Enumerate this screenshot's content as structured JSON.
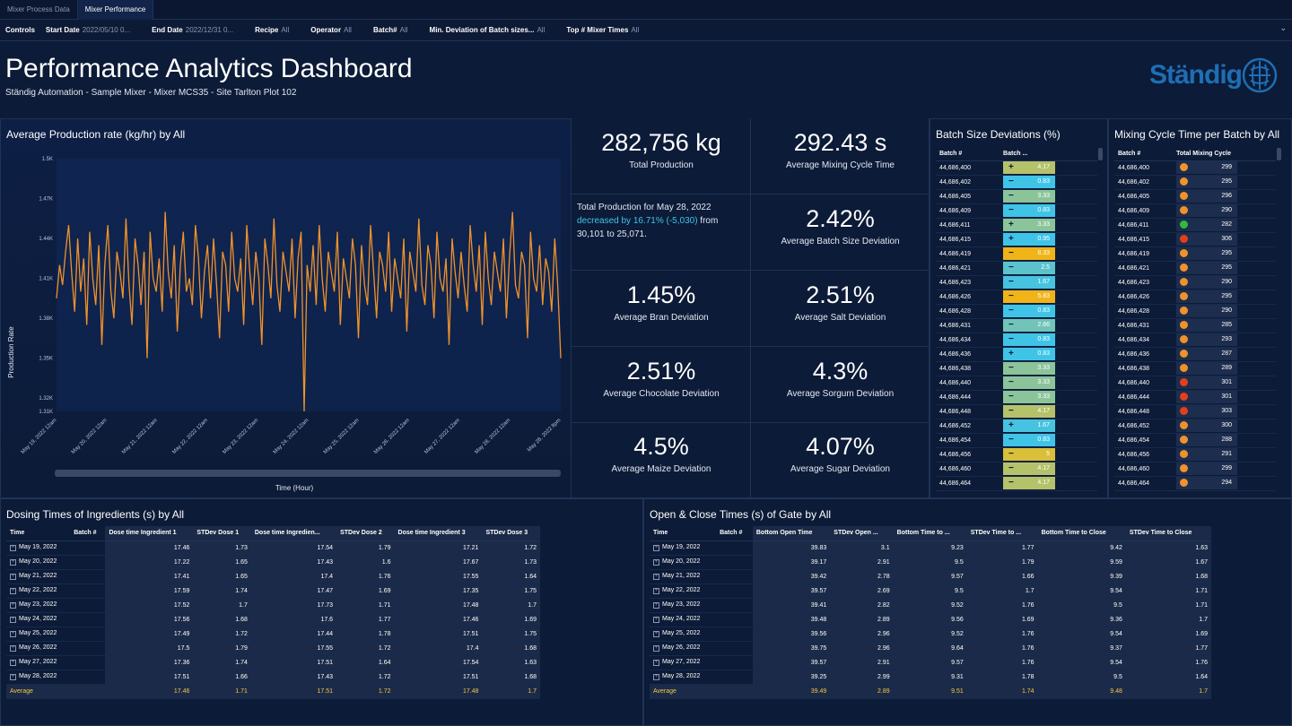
{
  "tabs": [
    "Mixer Process Data",
    "Mixer Performance"
  ],
  "controls": {
    "label": "Controls",
    "items": [
      {
        "name": "Start Date",
        "value": "2022/05/10 0..."
      },
      {
        "name": "End Date",
        "value": "2022/12/31 0..."
      },
      {
        "name": "Recipe",
        "value": "All"
      },
      {
        "name": "Operator",
        "value": "All"
      },
      {
        "name": "Batch#",
        "value": "All"
      },
      {
        "name": "Min. Deviation of Batch sizes...",
        "value": "All"
      },
      {
        "name": "Top # Mixer Times",
        "value": "All"
      }
    ]
  },
  "header": {
    "title": "Performance Analytics Dashboard",
    "subtitle": "Ständig Automation - Sample Mixer - Mixer MCS35 - Site Tarlton Plot 102",
    "logo_text": "Ständig"
  },
  "colors": {
    "accent": "#f0922b",
    "teal": "#3fc4e8",
    "yellow": "#f5c842",
    "good": "#2dbd3a",
    "bad": "#e2401c",
    "warn": "#f0922b"
  },
  "production_chart": {
    "title": "Average Production rate (kg/hr) by All",
    "xlabel": "Time (Hour)",
    "ylabel": "Production Rate",
    "chart_data": {
      "type": "line",
      "ylim": [
        1310,
        1500
      ],
      "yticks": [
        "1.5K",
        "1.47K",
        "1.44K",
        "1.41K",
        "1.38K",
        "1.35K",
        "1.32K",
        "1.31K"
      ],
      "ytick_values": [
        1500,
        1470,
        1440,
        1410,
        1380,
        1350,
        1320,
        1310
      ],
      "xticks": [
        "May 19, 2022 12am",
        "May 20, 2022 12am",
        "May 21, 2022 12am",
        "May 22, 2022 12am",
        "May 23, 2022 12am",
        "May 24, 2022 12am",
        "May 25, 2022 12am",
        "May 26, 2022 12am",
        "May 27, 2022 12am",
        "May 28, 2022 12am",
        "May 28, 2022 8pm"
      ],
      "values": [
        1395,
        1420,
        1405,
        1430,
        1450,
        1415,
        1385,
        1440,
        1400,
        1425,
        1375,
        1445,
        1410,
        1390,
        1435,
        1360,
        1420,
        1450,
        1400,
        1380,
        1430,
        1415,
        1395,
        1455,
        1405,
        1375,
        1440,
        1420,
        1390,
        1430,
        1350,
        1445,
        1410,
        1400,
        1425,
        1385,
        1460,
        1415,
        1395,
        1435,
        1370,
        1420,
        1445,
        1400,
        1410,
        1390,
        1450,
        1425,
        1380,
        1415,
        1435,
        1395,
        1440,
        1405,
        1365,
        1430,
        1420,
        1385,
        1445,
        1410,
        1400,
        1425,
        1375,
        1450,
        1415,
        1390,
        1430,
        1410,
        1360,
        1440,
        1420,
        1395,
        1455,
        1405,
        1385,
        1430,
        1415,
        1400,
        1440,
        1380,
        1425,
        1445,
        1310,
        1420,
        1400,
        1435,
        1390,
        1450,
        1410,
        1385,
        1430,
        1415,
        1400,
        1445,
        1375,
        1425,
        1410,
        1395,
        1440,
        1420,
        1365,
        1435,
        1405,
        1390,
        1450,
        1415,
        1380,
        1430,
        1420,
        1400,
        1445,
        1385,
        1425,
        1410,
        1395,
        1440,
        1370,
        1430,
        1415,
        1400,
        1455,
        1405,
        1390,
        1435,
        1420,
        1380,
        1445,
        1410,
        1400,
        1425,
        1360,
        1440,
        1415,
        1395,
        1430,
        1405,
        1385,
        1450,
        1420,
        1400,
        1435,
        1375,
        1445,
        1410,
        1390,
        1430,
        1415,
        1400,
        1440,
        1380,
        1425,
        1460,
        1405,
        1395,
        1430,
        1420,
        1365,
        1445,
        1410,
        1400,
        1435,
        1390,
        1425,
        1415,
        1385,
        1440,
        1405,
        1350
      ]
    }
  },
  "kpis": [
    {
      "value": "282,756 kg",
      "label": "Total Production"
    },
    {
      "value": "292.43 s",
      "label": "Average Mixing Cycle Time"
    },
    {
      "value": "2.42%",
      "label": "Average Batch Size Deviation"
    },
    {
      "value": "1.45%",
      "label": "Average Bran Deviation"
    },
    {
      "value": "2.51%",
      "label": "Average Salt Deviation"
    },
    {
      "value": "2.51%",
      "label": "Average Chocolate Deviation"
    },
    {
      "value": "4.3%",
      "label": "Average Sorgum Deviation"
    },
    {
      "value": "4.5%",
      "label": "Average Maize Deviation"
    },
    {
      "value": "4.07%",
      "label": "Average Sugar Deviation"
    }
  ],
  "narrative": {
    "line1": "Total Production for May 28, 2022",
    "highlight": "decreased by 16.71% (-5,030)",
    "line2": " from",
    "line3": "30,101 to 25,071."
  },
  "batch_deviation": {
    "title": "Batch Size Deviations (%)",
    "headers": [
      "Batch #",
      "Batch ..."
    ],
    "rows": [
      {
        "batch": "44,686,400",
        "sign": "+",
        "value": "4.17",
        "color": "#b5c26a"
      },
      {
        "batch": "44,686,402",
        "sign": "−",
        "value": "0.83",
        "color": "#3fc4e8"
      },
      {
        "batch": "44,686,405",
        "sign": "−",
        "value": "3.33",
        "color": "#8cc49a"
      },
      {
        "batch": "44,686,409",
        "sign": "−",
        "value": "0.83",
        "color": "#3fc4e8"
      },
      {
        "batch": "44,686,411",
        "sign": "+",
        "value": "3.33",
        "color": "#8cc49a"
      },
      {
        "batch": "44,686,415",
        "sign": "+",
        "value": "0.95",
        "color": "#3fc4e8"
      },
      {
        "batch": "44,686,419",
        "sign": "−",
        "value": "8.33",
        "color": "#f0b418"
      },
      {
        "batch": "44,686,421",
        "sign": "−",
        "value": "2.5",
        "color": "#5cc3cc"
      },
      {
        "batch": "44,686,423",
        "sign": "−",
        "value": "1.67",
        "color": "#46c3df"
      },
      {
        "batch": "44,686,426",
        "sign": "−",
        "value": "5.83",
        "color": "#f0b418"
      },
      {
        "batch": "44,686,428",
        "sign": "−",
        "value": "0.83",
        "color": "#3fc4e8"
      },
      {
        "batch": "44,686,431",
        "sign": "−",
        "value": "2.66",
        "color": "#72c4b8"
      },
      {
        "batch": "44,686,434",
        "sign": "−",
        "value": "0.83",
        "color": "#3fc4e8"
      },
      {
        "batch": "44,686,436",
        "sign": "+",
        "value": "0.83",
        "color": "#3fc4e8"
      },
      {
        "batch": "44,686,438",
        "sign": "−",
        "value": "3.33",
        "color": "#8cc49a"
      },
      {
        "batch": "44,686,440",
        "sign": "−",
        "value": "3.33",
        "color": "#8cc49a"
      },
      {
        "batch": "44,686,444",
        "sign": "−",
        "value": "3.33",
        "color": "#8cc49a"
      },
      {
        "batch": "44,686,448",
        "sign": "−",
        "value": "4.17",
        "color": "#b5c26a"
      },
      {
        "batch": "44,686,452",
        "sign": "+",
        "value": "1.67",
        "color": "#46c3df"
      },
      {
        "batch": "44,686,454",
        "sign": "−",
        "value": "0.83",
        "color": "#3fc4e8"
      },
      {
        "batch": "44,686,456",
        "sign": "−",
        "value": "5",
        "color": "#d9bf3a"
      },
      {
        "batch": "44,686,460",
        "sign": "−",
        "value": "4.17",
        "color": "#b5c26a"
      },
      {
        "batch": "44,686,464",
        "sign": "−",
        "value": "4.17",
        "color": "#b5c26a"
      }
    ]
  },
  "mixing_cycle": {
    "title": "Mixing Cycle Time per Batch by All",
    "headers": [
      "Batch #",
      "Total Mixing Cycle"
    ],
    "rows": [
      {
        "batch": "44,686,400",
        "value": "299",
        "status": "warn"
      },
      {
        "batch": "44,686,402",
        "value": "295",
        "status": "warn"
      },
      {
        "batch": "44,686,405",
        "value": "296",
        "status": "warn"
      },
      {
        "batch": "44,686,409",
        "value": "290",
        "status": "warn"
      },
      {
        "batch": "44,686,411",
        "value": "282",
        "status": "good"
      },
      {
        "batch": "44,686,415",
        "value": "306",
        "status": "bad"
      },
      {
        "batch": "44,686,419",
        "value": "295",
        "status": "warn"
      },
      {
        "batch": "44,686,421",
        "value": "295",
        "status": "warn"
      },
      {
        "batch": "44,686,423",
        "value": "290",
        "status": "warn"
      },
      {
        "batch": "44,686,426",
        "value": "295",
        "status": "warn"
      },
      {
        "batch": "44,686,428",
        "value": "290",
        "status": "warn"
      },
      {
        "batch": "44,686,431",
        "value": "285",
        "status": "warn"
      },
      {
        "batch": "44,686,434",
        "value": "293",
        "status": "warn"
      },
      {
        "batch": "44,686,436",
        "value": "287",
        "status": "warn"
      },
      {
        "batch": "44,686,438",
        "value": "289",
        "status": "warn"
      },
      {
        "batch": "44,686,440",
        "value": "301",
        "status": "bad"
      },
      {
        "batch": "44,686,444",
        "value": "301",
        "status": "bad"
      },
      {
        "batch": "44,686,448",
        "value": "303",
        "status": "bad"
      },
      {
        "batch": "44,686,452",
        "value": "300",
        "status": "warn"
      },
      {
        "batch": "44,686,454",
        "value": "288",
        "status": "warn"
      },
      {
        "batch": "44,686,456",
        "value": "291",
        "status": "warn"
      },
      {
        "batch": "44,686,460",
        "value": "299",
        "status": "warn"
      },
      {
        "batch": "44,686,464",
        "value": "294",
        "status": "warn"
      }
    ]
  },
  "dosing": {
    "title": "Dosing Times of Ingredients (s) by All",
    "headers": [
      "Time",
      "Batch #",
      "Dose time Ingredient 1",
      "STDev Dose 1",
      "Dose time Ingredien...",
      "STDev Dose 2",
      "Dose time Ingredient 3",
      "STDev Dose 3"
    ],
    "rows": [
      [
        "May 19, 2022",
        "",
        "17.46",
        "1.73",
        "17.54",
        "1.79",
        "17.21",
        "1.72"
      ],
      [
        "May 20, 2022",
        "",
        "17.22",
        "1.65",
        "17.43",
        "1.6",
        "17.67",
        "1.73"
      ],
      [
        "May 21, 2022",
        "",
        "17.41",
        "1.65",
        "17.4",
        "1.76",
        "17.55",
        "1.64"
      ],
      [
        "May 22, 2022",
        "",
        "17.59",
        "1.74",
        "17.47",
        "1.69",
        "17.35",
        "1.75"
      ],
      [
        "May 23, 2022",
        "",
        "17.52",
        "1.7",
        "17.73",
        "1.71",
        "17.48",
        "1.7"
      ],
      [
        "May 24, 2022",
        "",
        "17.56",
        "1.68",
        "17.6",
        "1.77",
        "17.46",
        "1.69"
      ],
      [
        "May 25, 2022",
        "",
        "17.49",
        "1.72",
        "17.44",
        "1.78",
        "17.51",
        "1.75"
      ],
      [
        "May 26, 2022",
        "",
        "17.5",
        "1.79",
        "17.55",
        "1.72",
        "17.4",
        "1.68"
      ],
      [
        "May 27, 2022",
        "",
        "17.36",
        "1.74",
        "17.51",
        "1.64",
        "17.54",
        "1.63"
      ],
      [
        "May 28, 2022",
        "",
        "17.51",
        "1.66",
        "17.43",
        "1.72",
        "17.51",
        "1.68"
      ]
    ],
    "average": [
      "Average",
      "",
      "17.46",
      "1.71",
      "17.51",
      "1.72",
      "17.48",
      "1.7"
    ]
  },
  "gate": {
    "title": "Open & Close Times (s) of Gate by All",
    "headers": [
      "Time",
      "Batch #",
      "Bottom Open Time",
      "STDev Open ...",
      "Bottom Time to ...",
      "STDev Time to ...",
      "Bottom Time to Close",
      "STDev Time to Close"
    ],
    "rows": [
      [
        "May 19, 2022",
        "",
        "39.83",
        "3.1",
        "9.23",
        "1.77",
        "9.42",
        "1.63"
      ],
      [
        "May 20, 2022",
        "",
        "39.17",
        "2.91",
        "9.5",
        "1.79",
        "9.59",
        "1.67"
      ],
      [
        "May 21, 2022",
        "",
        "39.42",
        "2.78",
        "9.57",
        "1.66",
        "9.39",
        "1.68"
      ],
      [
        "May 22, 2022",
        "",
        "39.57",
        "2.69",
        "9.5",
        "1.7",
        "9.54",
        "1.71"
      ],
      [
        "May 23, 2022",
        "",
        "39.41",
        "2.82",
        "9.52",
        "1.76",
        "9.5",
        "1.71"
      ],
      [
        "May 24, 2022",
        "",
        "39.48",
        "2.89",
        "9.56",
        "1.69",
        "9.36",
        "1.7"
      ],
      [
        "May 25, 2022",
        "",
        "39.56",
        "2.96",
        "9.52",
        "1.76",
        "9.54",
        "1.69"
      ],
      [
        "May 26, 2022",
        "",
        "39.75",
        "2.96",
        "9.64",
        "1.76",
        "9.37",
        "1.77"
      ],
      [
        "May 27, 2022",
        "",
        "39.57",
        "2.91",
        "9.57",
        "1.76",
        "9.54",
        "1.76"
      ],
      [
        "May 28, 2022",
        "",
        "39.25",
        "2.99",
        "9.31",
        "1.78",
        "9.5",
        "1.64"
      ]
    ],
    "average": [
      "Average",
      "",
      "39.49",
      "2.89",
      "9.51",
      "1.74",
      "9.48",
      "1.7"
    ]
  }
}
